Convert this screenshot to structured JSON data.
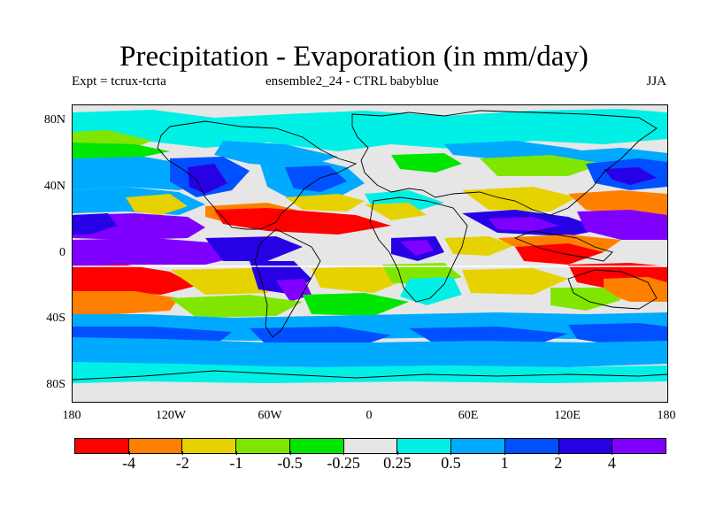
{
  "title": "Precipitation - Evaporation (in mm/day)",
  "subtitle_left": "Expt = tcrux-tcrta",
  "subtitle_center": "ensemble2_24 - CTRL babyblue",
  "season": "JJA",
  "y_axis_ticks": [
    "80N",
    "40N",
    "0",
    "40S",
    "80S"
  ],
  "x_axis_ticks": [
    "180",
    "120W",
    "60W",
    "0",
    "60E",
    "120E",
    "180"
  ],
  "colorbar": {
    "colors": [
      "#ff0000",
      "#ff8000",
      "#e6d200",
      "#80e600",
      "#00e600",
      "#e6e6e6",
      "#00f0e6",
      "#00aaff",
      "#0050ff",
      "#2800e6",
      "#8000ff"
    ],
    "labels": [
      "-4",
      "-2",
      "-1",
      "-0.5",
      "-0.25",
      "0.25",
      "0.5",
      "1",
      "2",
      "4"
    ]
  },
  "colors": {
    "neutral": "#e6e6e6",
    "coastline": "#000000"
  }
}
